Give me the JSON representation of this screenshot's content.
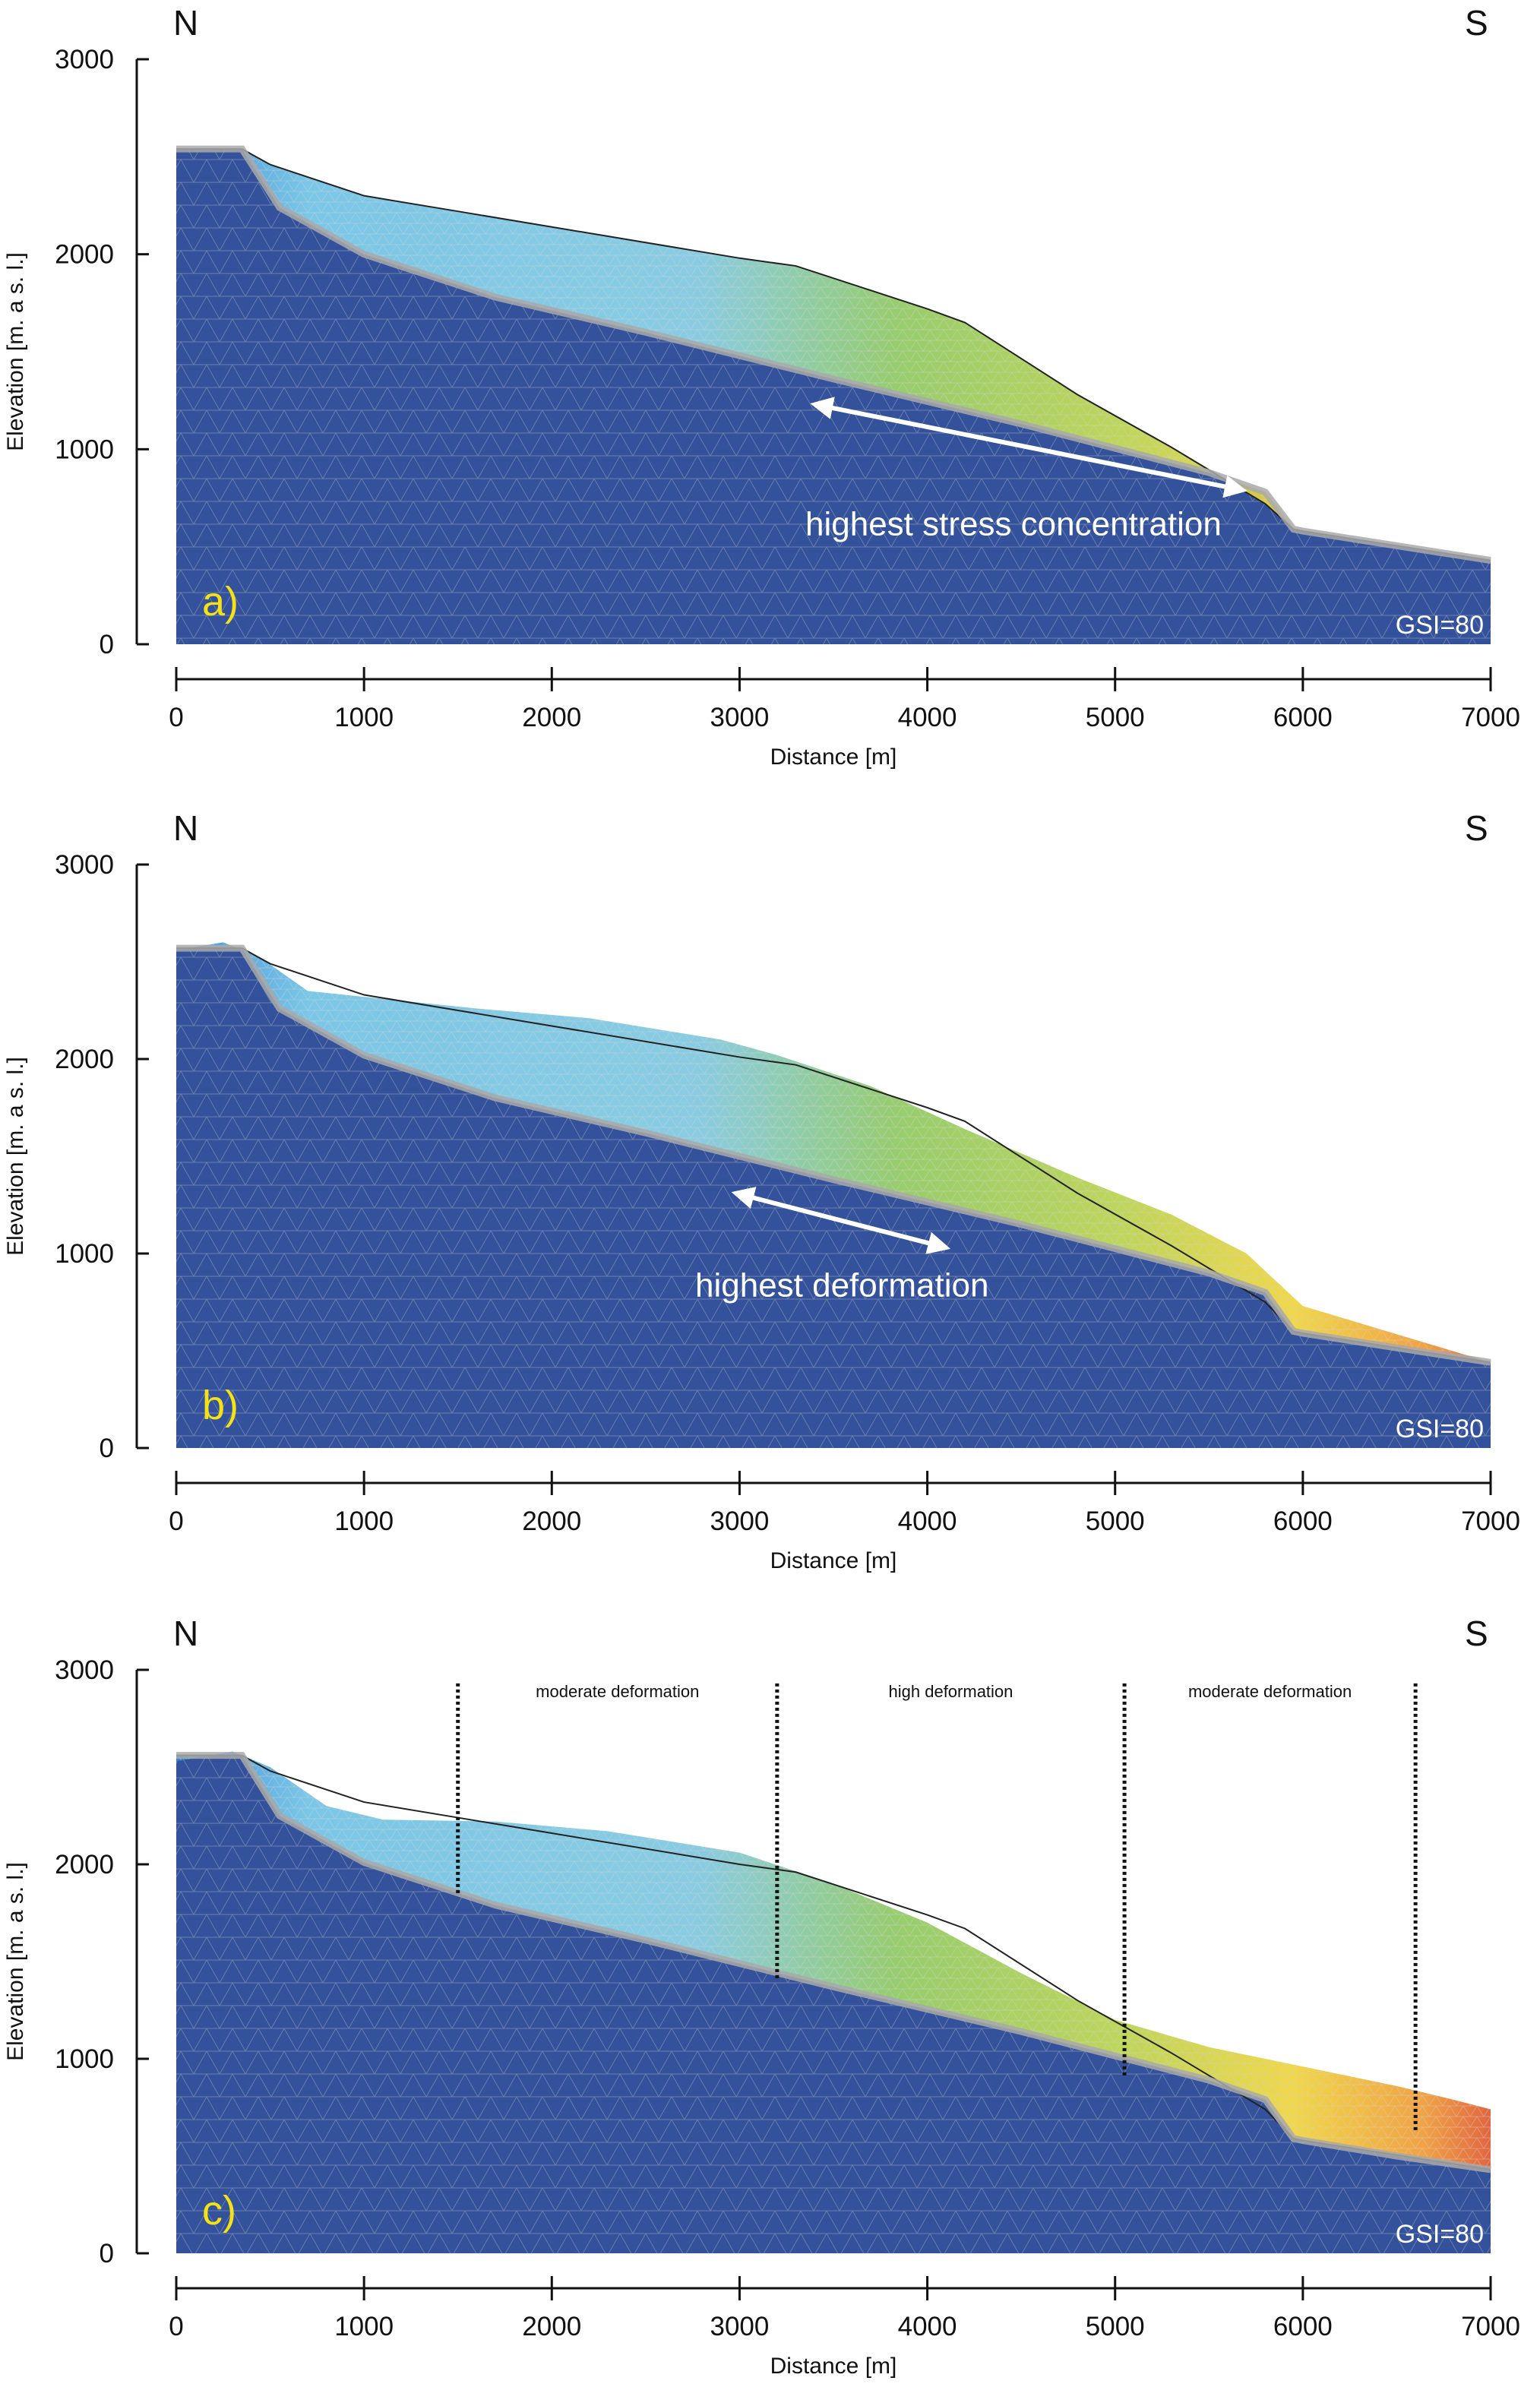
{
  "chart_data": [
    {
      "type": "area",
      "panel": "a)",
      "compass_left": "N",
      "compass_right": "S",
      "xlabel": "Distance [m]",
      "ylabel": "Elevation [m. a s. l.]",
      "xlim": [
        0,
        7000
      ],
      "ylim": [
        0,
        3000
      ],
      "xticks": [
        "0",
        "1000",
        "2000",
        "3000",
        "4000",
        "5000",
        "6000",
        "7000"
      ],
      "yticks": [
        "0",
        "1000",
        "2000",
        "3000"
      ],
      "gsi_label": "GSI=80",
      "annotation": "highest stress concentration",
      "arrow_from": [
        3400,
        1230
      ],
      "arrow_to": [
        5680,
        790
      ],
      "ground_surface": {
        "x": [
          0,
          350,
          500,
          1000,
          1500,
          2000,
          3000,
          3300,
          4000,
          4200,
          4800,
          5300,
          5800,
          5950,
          6000,
          7000
        ],
        "y": [
          2540,
          2540,
          2460,
          2300,
          2220,
          2140,
          1980,
          1940,
          1720,
          1650,
          1280,
          1010,
          720,
          590,
          580,
          430
        ]
      },
      "stable_base": {
        "x": [
          0,
          350,
          550,
          1000,
          1700,
          2500,
          3500,
          4500,
          5500,
          5800,
          5950,
          6000,
          7000
        ],
        "y": [
          2540,
          2540,
          2240,
          2000,
          1780,
          1600,
          1360,
          1130,
          880,
          780,
          590,
          580,
          430
        ]
      }
    },
    {
      "type": "area",
      "panel": "b)",
      "compass_left": "N",
      "compass_right": "S",
      "xlabel": "Distance [m]",
      "ylabel": "Elevation [m. a s. l.]",
      "xlim": [
        0,
        7000
      ],
      "ylim": [
        0,
        3000
      ],
      "xticks": [
        "0",
        "1000",
        "2000",
        "3000",
        "4000",
        "5000",
        "6000",
        "7000"
      ],
      "yticks": [
        "0",
        "1000",
        "2000",
        "3000"
      ],
      "gsi_label": "GSI=80",
      "annotation": "highest deformation",
      "arrow_from": [
        2980,
        1310
      ],
      "arrow_to": [
        4100,
        1030
      ],
      "initial_surface": {
        "x": [
          0,
          350,
          500,
          1000,
          1500,
          2000,
          3000,
          3300,
          4000,
          4200,
          4800,
          5300,
          5800,
          5950,
          6000,
          7000
        ],
        "y": [
          2570,
          2570,
          2490,
          2330,
          2250,
          2170,
          2010,
          1970,
          1750,
          1680,
          1310,
          1040,
          750,
          600,
          590,
          440
        ]
      },
      "deformed_surface": {
        "x": [
          0,
          250,
          450,
          700,
          1000,
          1600,
          2200,
          2900,
          3200,
          3700,
          4200,
          4800,
          5300,
          5700,
          6000
        ],
        "y": [
          2560,
          2600,
          2520,
          2350,
          2320,
          2260,
          2210,
          2100,
          2020,
          1860,
          1640,
          1390,
          1200,
          1000,
          730
        ]
      },
      "stable_base": {
        "x": [
          0,
          350,
          550,
          1000,
          1700,
          2500,
          3500,
          4500,
          5500,
          5800,
          5950,
          6000,
          7000
        ],
        "y": [
          2570,
          2570,
          2260,
          2020,
          1800,
          1620,
          1380,
          1150,
          900,
          800,
          600,
          590,
          440
        ]
      }
    },
    {
      "type": "area",
      "panel": "c)",
      "compass_left": "N",
      "compass_right": "S",
      "xlabel": "Distance [m]",
      "ylabel": "Elevation [m. a s. l.]",
      "xlim": [
        0,
        7000
      ],
      "ylim": [
        0,
        3000
      ],
      "xticks": [
        "0",
        "1000",
        "2000",
        "3000",
        "4000",
        "5000",
        "6000",
        "7000"
      ],
      "yticks": [
        "0",
        "1000",
        "2000",
        "3000"
      ],
      "gsi_label": "GSI=80",
      "zone_boundaries": [
        1500,
        3200,
        5050,
        6600
      ],
      "zones": [
        {
          "label": "moderate deformation",
          "x": 2350
        },
        {
          "label": "high deformation",
          "x": 4125
        },
        {
          "label": "moderate deformation",
          "x": 5825
        }
      ],
      "initial_surface": {
        "x": [
          0,
          350,
          500,
          1000,
          1500,
          2000,
          3000,
          3300,
          4000,
          4200,
          4800,
          5300,
          5800,
          5950,
          6000,
          7000
        ],
        "y": [
          2560,
          2560,
          2480,
          2320,
          2240,
          2160,
          2000,
          1960,
          1740,
          1670,
          1300,
          1030,
          740,
          590,
          580,
          430
        ]
      },
      "deformed_surface": {
        "x": [
          0,
          300,
          500,
          800,
          1100,
          1700,
          2300,
          3000,
          3500,
          4000,
          4500,
          5000,
          5500,
          6000,
          6500,
          6800,
          7000
        ],
        "y": [
          2530,
          2580,
          2500,
          2300,
          2230,
          2220,
          2170,
          2060,
          1900,
          1700,
          1440,
          1200,
          1060,
          960,
          860,
          790,
          740
        ]
      },
      "stable_base": {
        "x": [
          0,
          350,
          550,
          1000,
          1700,
          2500,
          3500,
          4500,
          5500,
          5800,
          5950,
          6000,
          6500,
          7000
        ],
        "y": [
          2560,
          2560,
          2250,
          2010,
          1790,
          1610,
          1370,
          1140,
          890,
          790,
          590,
          580,
          500,
          430
        ]
      }
    }
  ]
}
